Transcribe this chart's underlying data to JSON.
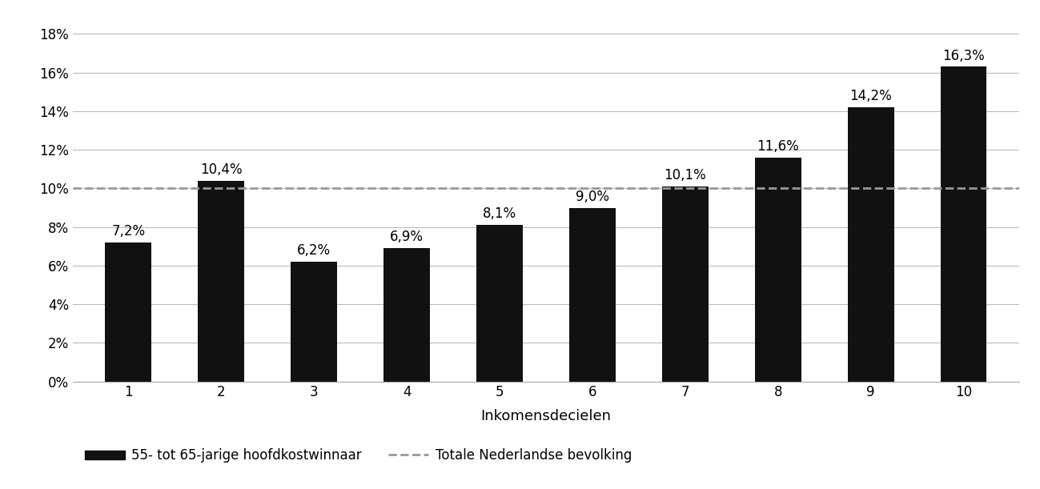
{
  "categories": [
    1,
    2,
    3,
    4,
    5,
    6,
    7,
    8,
    9,
    10
  ],
  "values": [
    0.072,
    0.104,
    0.062,
    0.069,
    0.081,
    0.09,
    0.101,
    0.116,
    0.142,
    0.163
  ],
  "labels": [
    "7,2%",
    "10,4%",
    "6,2%",
    "6,9%",
    "8,1%",
    "9,0%",
    "10,1%",
    "11,6%",
    "14,2%",
    "16,3%"
  ],
  "bar_color": "#111111",
  "dashed_line_value": 0.1,
  "dashed_line_color": "#999999",
  "xlabel": "Inkomensdecielen",
  "ylabel": "",
  "ylim": [
    0,
    0.19
  ],
  "yticks": [
    0.0,
    0.02,
    0.04,
    0.06,
    0.08,
    0.1,
    0.12,
    0.14,
    0.16,
    0.18
  ],
  "ytick_labels": [
    "0%",
    "2%",
    "4%",
    "6%",
    "8%",
    "10%",
    "12%",
    "14%",
    "16%",
    "18%"
  ],
  "legend_bar_label": "55- tot 65-jarige hoofdkostwinnaar",
  "legend_line_label": "Totale Nederlandse bevolking",
  "background_color": "#ffffff",
  "grid_color": "#bbbbbb",
  "label_fontsize": 12,
  "axis_fontsize": 12,
  "legend_fontsize": 12,
  "bar_width": 0.5
}
